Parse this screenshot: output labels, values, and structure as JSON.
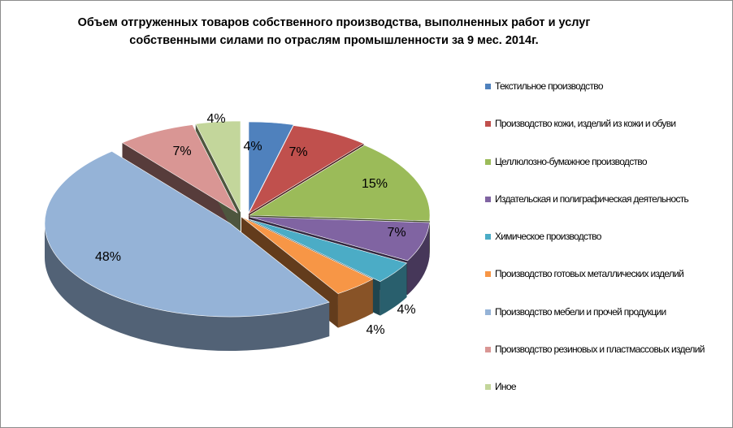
{
  "chart_data": {
    "type": "pie",
    "style": "3d-exploded",
    "title_lines": [
      "Объем отгруженных товаров собственного производства, выполненных работ и услуг",
      "собственными силами по отраслям промышленности за 9 мес. 2014г."
    ],
    "legend_position": "right",
    "slices": [
      {
        "name": "Текстильное производство",
        "value": 4,
        "label": "4%",
        "color": "#4F81BD"
      },
      {
        "name": "Производство кожи, изделий из кожи и обуви",
        "value": 7,
        "label": "7%",
        "color": "#C0504D"
      },
      {
        "name": "Целлюлозно-бумажное производство",
        "value": 15,
        "label": "15%",
        "color": "#9BBB59"
      },
      {
        "name": "Издательская и полиграфическая деятельность",
        "value": 7,
        "label": "7%",
        "color": "#8064A2"
      },
      {
        "name": "Химическое производство",
        "value": 4,
        "label": "4%",
        "color": "#4BACC6"
      },
      {
        "name": "Производство готовых металлических изделий",
        "value": 4,
        "label": "4%",
        "color": "#F79646"
      },
      {
        "name": "Производство мебели и прочей продукции",
        "value": 48,
        "label": "48%",
        "color": "#95B3D7"
      },
      {
        "name": "Производство резиновых и пластмассовых изделий",
        "value": 7,
        "label": "7%",
        "color": "#D99694"
      },
      {
        "name": "Иное",
        "value": 4,
        "label": "4%",
        "color": "#C3D69B"
      }
    ]
  }
}
